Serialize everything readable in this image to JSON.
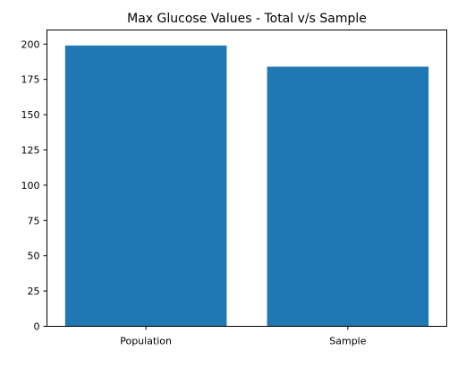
{
  "chart_data": {
    "type": "bar",
    "title": "Max Glucose Values - Total v/s Sample",
    "xlabel": "",
    "ylabel": "",
    "categories": [
      "Population",
      "Sample"
    ],
    "values": [
      199,
      184
    ],
    "ylim": [
      0,
      210
    ],
    "yticks": [
      0,
      25,
      50,
      75,
      100,
      125,
      150,
      175,
      200
    ],
    "bar_color": "#1f77b4",
    "grid": false,
    "legend": "none"
  }
}
